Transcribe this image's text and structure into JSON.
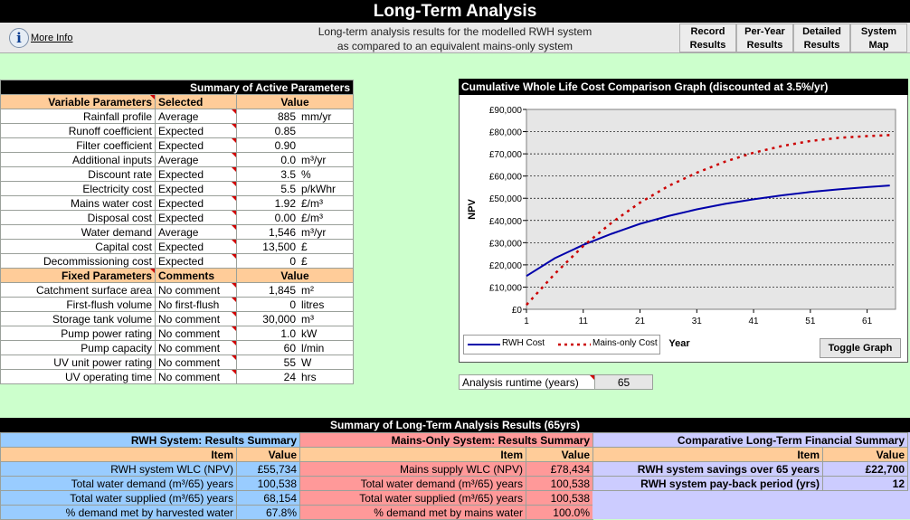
{
  "app": {
    "title": "Long-Term Analysis",
    "more_info": "More Info",
    "subtitle_line1": "Long-term analysis results for the modelled RWH system",
    "subtitle_line2": "as compared to an equivalent mains-only system",
    "nav": [
      {
        "line1": "Record",
        "line2": "Results"
      },
      {
        "line1": "Per-Year",
        "line2": "Results"
      },
      {
        "line1": "Detailed",
        "line2": "Results"
      },
      {
        "line1": "System",
        "line2": "Map"
      }
    ]
  },
  "params": {
    "title": "Summary of Active Parameters",
    "var_headers": [
      "Variable Parameters",
      "Selected",
      "Value"
    ],
    "variable": [
      {
        "name": "Rainfall profile",
        "sel": "Average",
        "val": "885",
        "unit": "mm/yr"
      },
      {
        "name": "Runoff coefficient",
        "sel": "Expected",
        "val": "0.85",
        "unit": ""
      },
      {
        "name": "Filter coefficient",
        "sel": "Expected",
        "val": "0.90",
        "unit": ""
      },
      {
        "name": "Additional inputs",
        "sel": "Average",
        "val": "0.0",
        "unit": "m³/yr"
      },
      {
        "name": "Discount rate",
        "sel": "Expected",
        "val": "3.5",
        "unit": "%"
      },
      {
        "name": "Electricity cost",
        "sel": "Expected",
        "val": "5.5",
        "unit": "p/kWhr"
      },
      {
        "name": "Mains water cost",
        "sel": "Expected",
        "val": "1.92",
        "unit": "£/m³"
      },
      {
        "name": "Disposal cost",
        "sel": "Expected",
        "val": "0.00",
        "unit": "£/m³"
      },
      {
        "name": "Water demand",
        "sel": "Average",
        "val": "1,546",
        "unit": "m³/yr"
      },
      {
        "name": "Capital cost",
        "sel": "Expected",
        "val": "13,500",
        "unit": "£"
      },
      {
        "name": "Decommissioning cost",
        "sel": "Expected",
        "val": "0",
        "unit": "£"
      }
    ],
    "fix_headers": [
      "Fixed Parameters",
      "Comments",
      "Value"
    ],
    "fixed": [
      {
        "name": "Catchment surface area",
        "sel": "No comment",
        "val": "1,845",
        "unit": "m²"
      },
      {
        "name": "First-flush volume",
        "sel": "No first-flush",
        "val": "0",
        "unit": "litres"
      },
      {
        "name": "Storage tank volume",
        "sel": "No comment",
        "val": "30,000",
        "unit": "m³"
      },
      {
        "name": "Pump power rating",
        "sel": "No comment",
        "val": "1.0",
        "unit": "kW"
      },
      {
        "name": "Pump capacity",
        "sel": "No comment",
        "val": "60",
        "unit": "l/min"
      },
      {
        "name": "UV unit power rating",
        "sel": "No comment",
        "val": "55",
        "unit": "W"
      },
      {
        "name": "UV operating time",
        "sel": "No comment",
        "val": "24",
        "unit": "hrs"
      }
    ]
  },
  "chart_data": {
    "type": "line",
    "title": "Cumulative Whole Life Cost Comparison Graph (discounted at 3.5%/yr)",
    "xlabel": "Year",
    "ylabel": "NPV",
    "xlim": [
      1,
      66
    ],
    "ylim": [
      0,
      90000
    ],
    "xticks": [
      "1",
      "11",
      "21",
      "31",
      "41",
      "51",
      "61"
    ],
    "yticks": [
      "£0",
      "£10,000",
      "£20,000",
      "£30,000",
      "£40,000",
      "£50,000",
      "£60,000",
      "£70,000",
      "£80,000",
      "£90,000"
    ],
    "grid": true,
    "legend_position": "bottom-left",
    "x": [
      1,
      6,
      11,
      16,
      21,
      26,
      31,
      36,
      41,
      46,
      51,
      56,
      61,
      65
    ],
    "series": [
      {
        "name": "RWH Cost",
        "color": "#0000aa",
        "style": "solid",
        "values": [
          15000,
          23000,
          29000,
          34000,
          38500,
          42000,
          45000,
          47500,
          49500,
          51300,
          52800,
          54000,
          55000,
          55734
        ]
      },
      {
        "name": "Mains-only Cost",
        "color": "#cc0000",
        "style": "dashed",
        "values": [
          2000,
          16000,
          28500,
          39000,
          48000,
          55500,
          61500,
          66500,
          70500,
          73500,
          75800,
          77200,
          78000,
          78434
        ]
      }
    ]
  },
  "chart_ui": {
    "toggle": "Toggle Graph"
  },
  "runtime": {
    "label": "Analysis runtime (years)",
    "value": "65"
  },
  "results": {
    "title": "Summary of Long-Term Analysis Results (65yrs)",
    "item": "Item",
    "value": "Value",
    "rwh": {
      "title": "RWH System: Results Summary",
      "rows": [
        {
          "item": "RWH system WLC (NPV)",
          "value": "£55,734"
        },
        {
          "item": "Total water demand (m³/65) years",
          "value": "100,538"
        },
        {
          "item": "Total water supplied (m³/65) years",
          "value": "68,154"
        },
        {
          "item": "% demand met by harvested water",
          "value": "67.8%"
        }
      ]
    },
    "mains": {
      "title": "Mains-Only System: Results Summary",
      "rows": [
        {
          "item": "Mains supply WLC (NPV)",
          "value": "£78,434"
        },
        {
          "item": "Total water demand (m³/65) years",
          "value": "100,538"
        },
        {
          "item": "Total water supplied (m³/65) years",
          "value": "100,538"
        },
        {
          "item": "% demand met by mains water",
          "value": "100.0%"
        }
      ]
    },
    "comp": {
      "title": "Comparative Long-Term Financial Summary",
      "rows": [
        {
          "item": "RWH system savings over 65 years",
          "value": "£22,700"
        },
        {
          "item": "RWH system pay-back period (yrs)",
          "value": "12"
        }
      ]
    }
  },
  "colors": {
    "bg": "#ccffcc",
    "rwh": "#99ccff",
    "mains": "#ff9999",
    "comp": "#ccccff",
    "header": "#ffcc99"
  }
}
